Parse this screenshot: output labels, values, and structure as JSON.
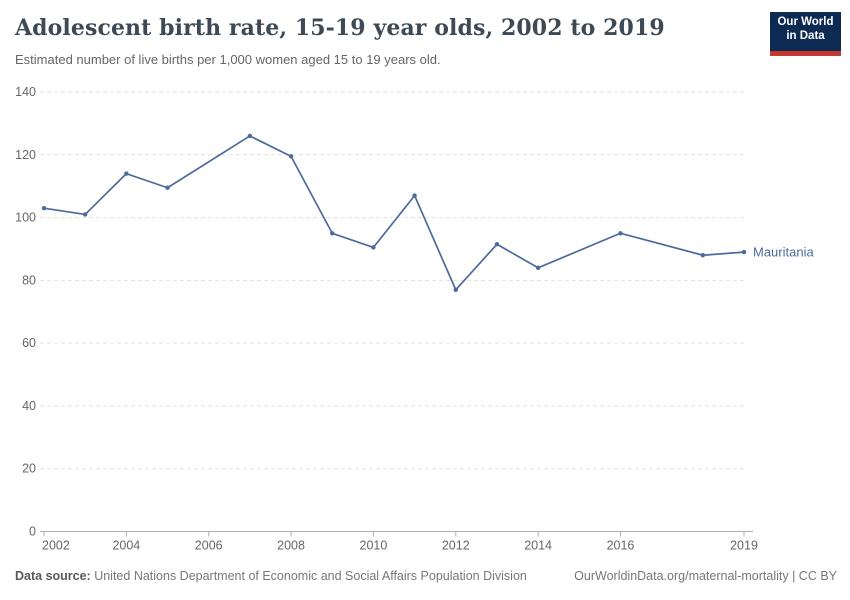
{
  "header": {
    "title": "Adolescent birth rate, 15-19 year olds, 2002 to 2019",
    "subtitle": "Estimated number of live births per 1,000 women aged 15 to 19 years old."
  },
  "logo": {
    "line1": "Our World",
    "line2": "in Data",
    "bg_color": "#0d2a52",
    "accent_color": "#c53a2f"
  },
  "footer": {
    "source_label": "Data source:",
    "source_text": " United Nations Department of Economic and Social Affairs Population Division",
    "link_text": "OurWorldinData.org/maternal-mortality | CC BY"
  },
  "colors": {
    "line": "#4c6a9c",
    "entity_label": "#4c6a9c",
    "grid": "#e0e0e0",
    "axis": "#b0b0b0",
    "tick_text": "#666666",
    "title_text": "#3d4954"
  },
  "chart_data": {
    "type": "line",
    "title": "Adolescent birth rate, 15-19 year olds, 2002 to 2019",
    "subtitle": "Estimated number of live births per 1,000 women aged 15 to 19 years old.",
    "xlabel": "",
    "ylabel": "",
    "xlim": [
      2002,
      2019
    ],
    "ylim": [
      0,
      140
    ],
    "y_ticks": [
      0,
      20,
      40,
      60,
      80,
      100,
      120,
      140
    ],
    "x_ticks": [
      2002,
      2004,
      2006,
      2008,
      2010,
      2012,
      2014,
      2016,
      2019
    ],
    "grid": "horizontal-dashed",
    "legend_position": "right-of-last-point",
    "series": [
      {
        "name": "Mauritania",
        "color": "#4c6a9c",
        "x": [
          2002,
          2003,
          2004,
          2005,
          2007,
          2008,
          2009,
          2010,
          2011,
          2012,
          2013,
          2014,
          2016,
          2018,
          2019
        ],
        "values": [
          103,
          101,
          114,
          109.5,
          126,
          119.5,
          95,
          90.5,
          107,
          77,
          91.5,
          84,
          95,
          88,
          89
        ]
      }
    ]
  }
}
